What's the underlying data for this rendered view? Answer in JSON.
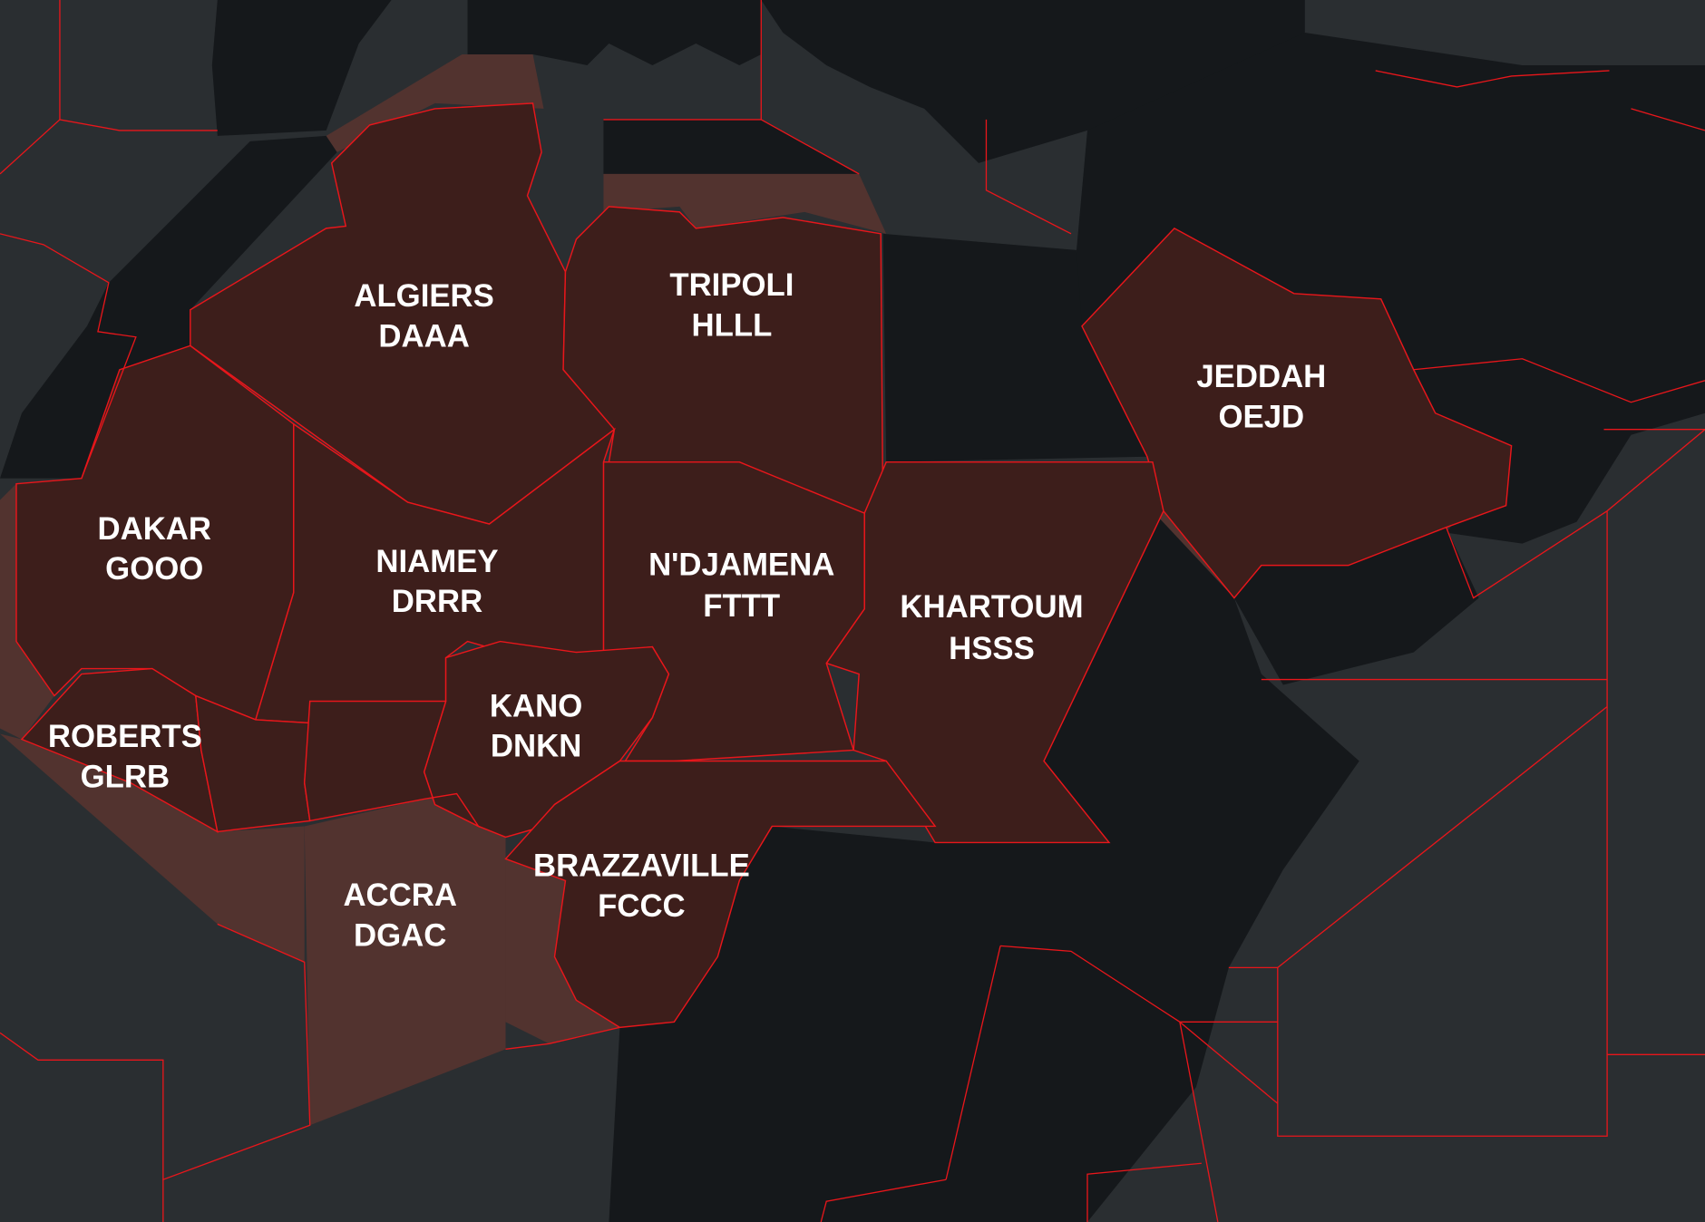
{
  "map": {
    "colors": {
      "water": "#2a2e31",
      "land": "#15181b",
      "fir_fill": "#3d1e1b",
      "fir_oceanic_fill": "#52332f",
      "fir_border": "#e8161b",
      "label": "#ffffff"
    },
    "regions": [
      {
        "name": "ALGIERS",
        "code": "DAAA"
      },
      {
        "name": "TRIPOLI",
        "code": "HLLL"
      },
      {
        "name": "JEDDAH",
        "code": "OEJD"
      },
      {
        "name": "DAKAR",
        "code": "GOOO"
      },
      {
        "name": "NIAMEY",
        "code": "DRRR"
      },
      {
        "name": "N'DJAMENA",
        "code": "FTTT"
      },
      {
        "name": "KHARTOUM",
        "code": "HSSS"
      },
      {
        "name": "KANO",
        "code": "DNKN"
      },
      {
        "name": "ROBERTS",
        "code": "GLRB"
      },
      {
        "name": "ACCRA",
        "code": "DGAC"
      },
      {
        "name": "BRAZZAVILLE",
        "code": "FCCC"
      }
    ]
  }
}
